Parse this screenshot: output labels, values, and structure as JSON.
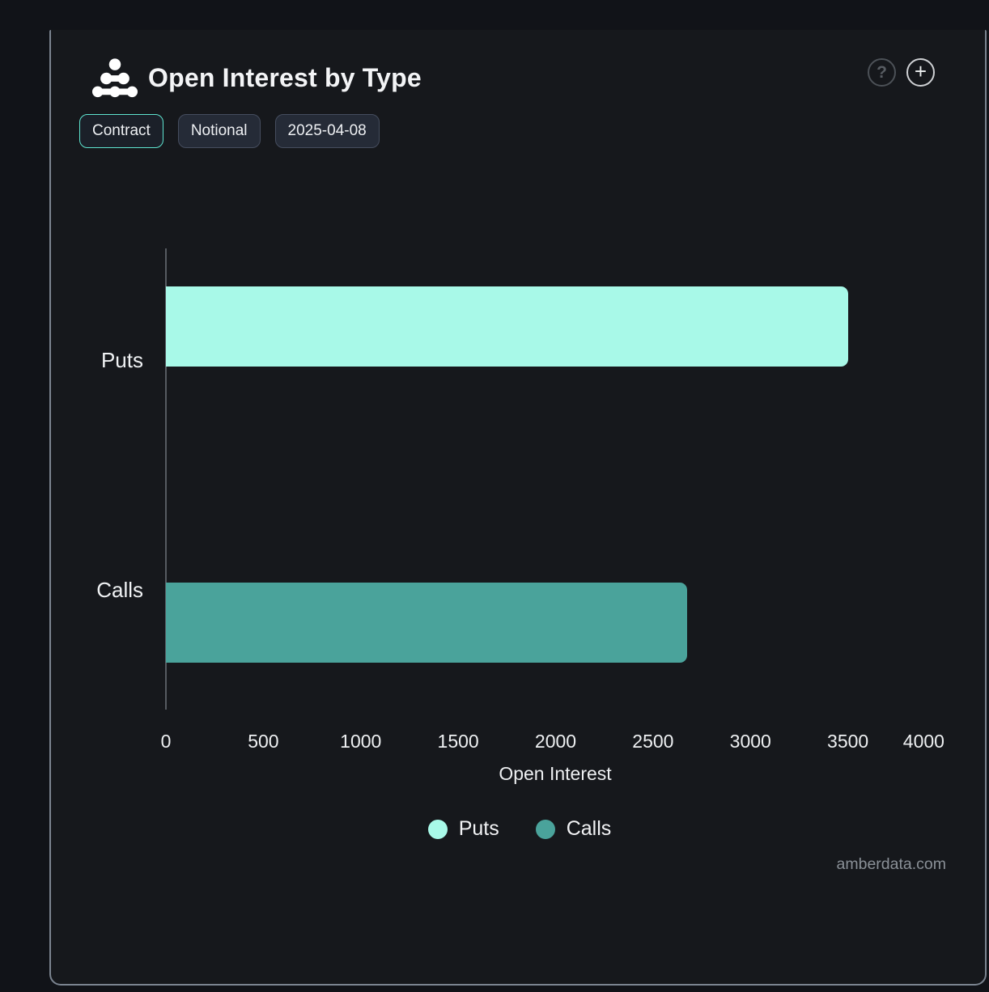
{
  "header": {
    "title": "Open Interest by Type",
    "help_icon_glyph": "?",
    "add_icon_glyph": "+"
  },
  "toolbar": {
    "buttons": [
      {
        "id": "contract",
        "label": "Contract",
        "active": true
      },
      {
        "id": "notional",
        "label": "Notional",
        "active": false
      },
      {
        "id": "date",
        "label": "2025-04-08",
        "active": false
      }
    ]
  },
  "chart_data": {
    "type": "bar",
    "orientation": "horizontal",
    "title": "Open Interest by Type",
    "categories": [
      "Puts",
      "Calls"
    ],
    "series": [
      {
        "name": "Puts",
        "value": 3500,
        "color": "#a8f9e8"
      },
      {
        "name": "Calls",
        "value": 2675,
        "color": "#4aa39b"
      }
    ],
    "xlabel": "Open Interest",
    "ylabel": "",
    "xlim": [
      0,
      4000
    ],
    "xticks": [
      0,
      500,
      1000,
      1500,
      2000,
      2500,
      3000,
      3500,
      4000
    ],
    "grid": false,
    "legend_position": "bottom",
    "legend": [
      {
        "label": "Puts",
        "color": "#a8f9e8"
      },
      {
        "label": "Calls",
        "color": "#4aa39b"
      }
    ]
  },
  "watermark": "amberdata.com",
  "colors": {
    "card_background": "#16181c",
    "page_background": "#111318",
    "card_border": "#7b8490",
    "axis_line": "#565b61",
    "active_button_border": "#5ee4cf",
    "puts_bar": "#a8f9e8",
    "calls_bar": "#4aa39b",
    "watermark_text": "#8a9097"
  }
}
